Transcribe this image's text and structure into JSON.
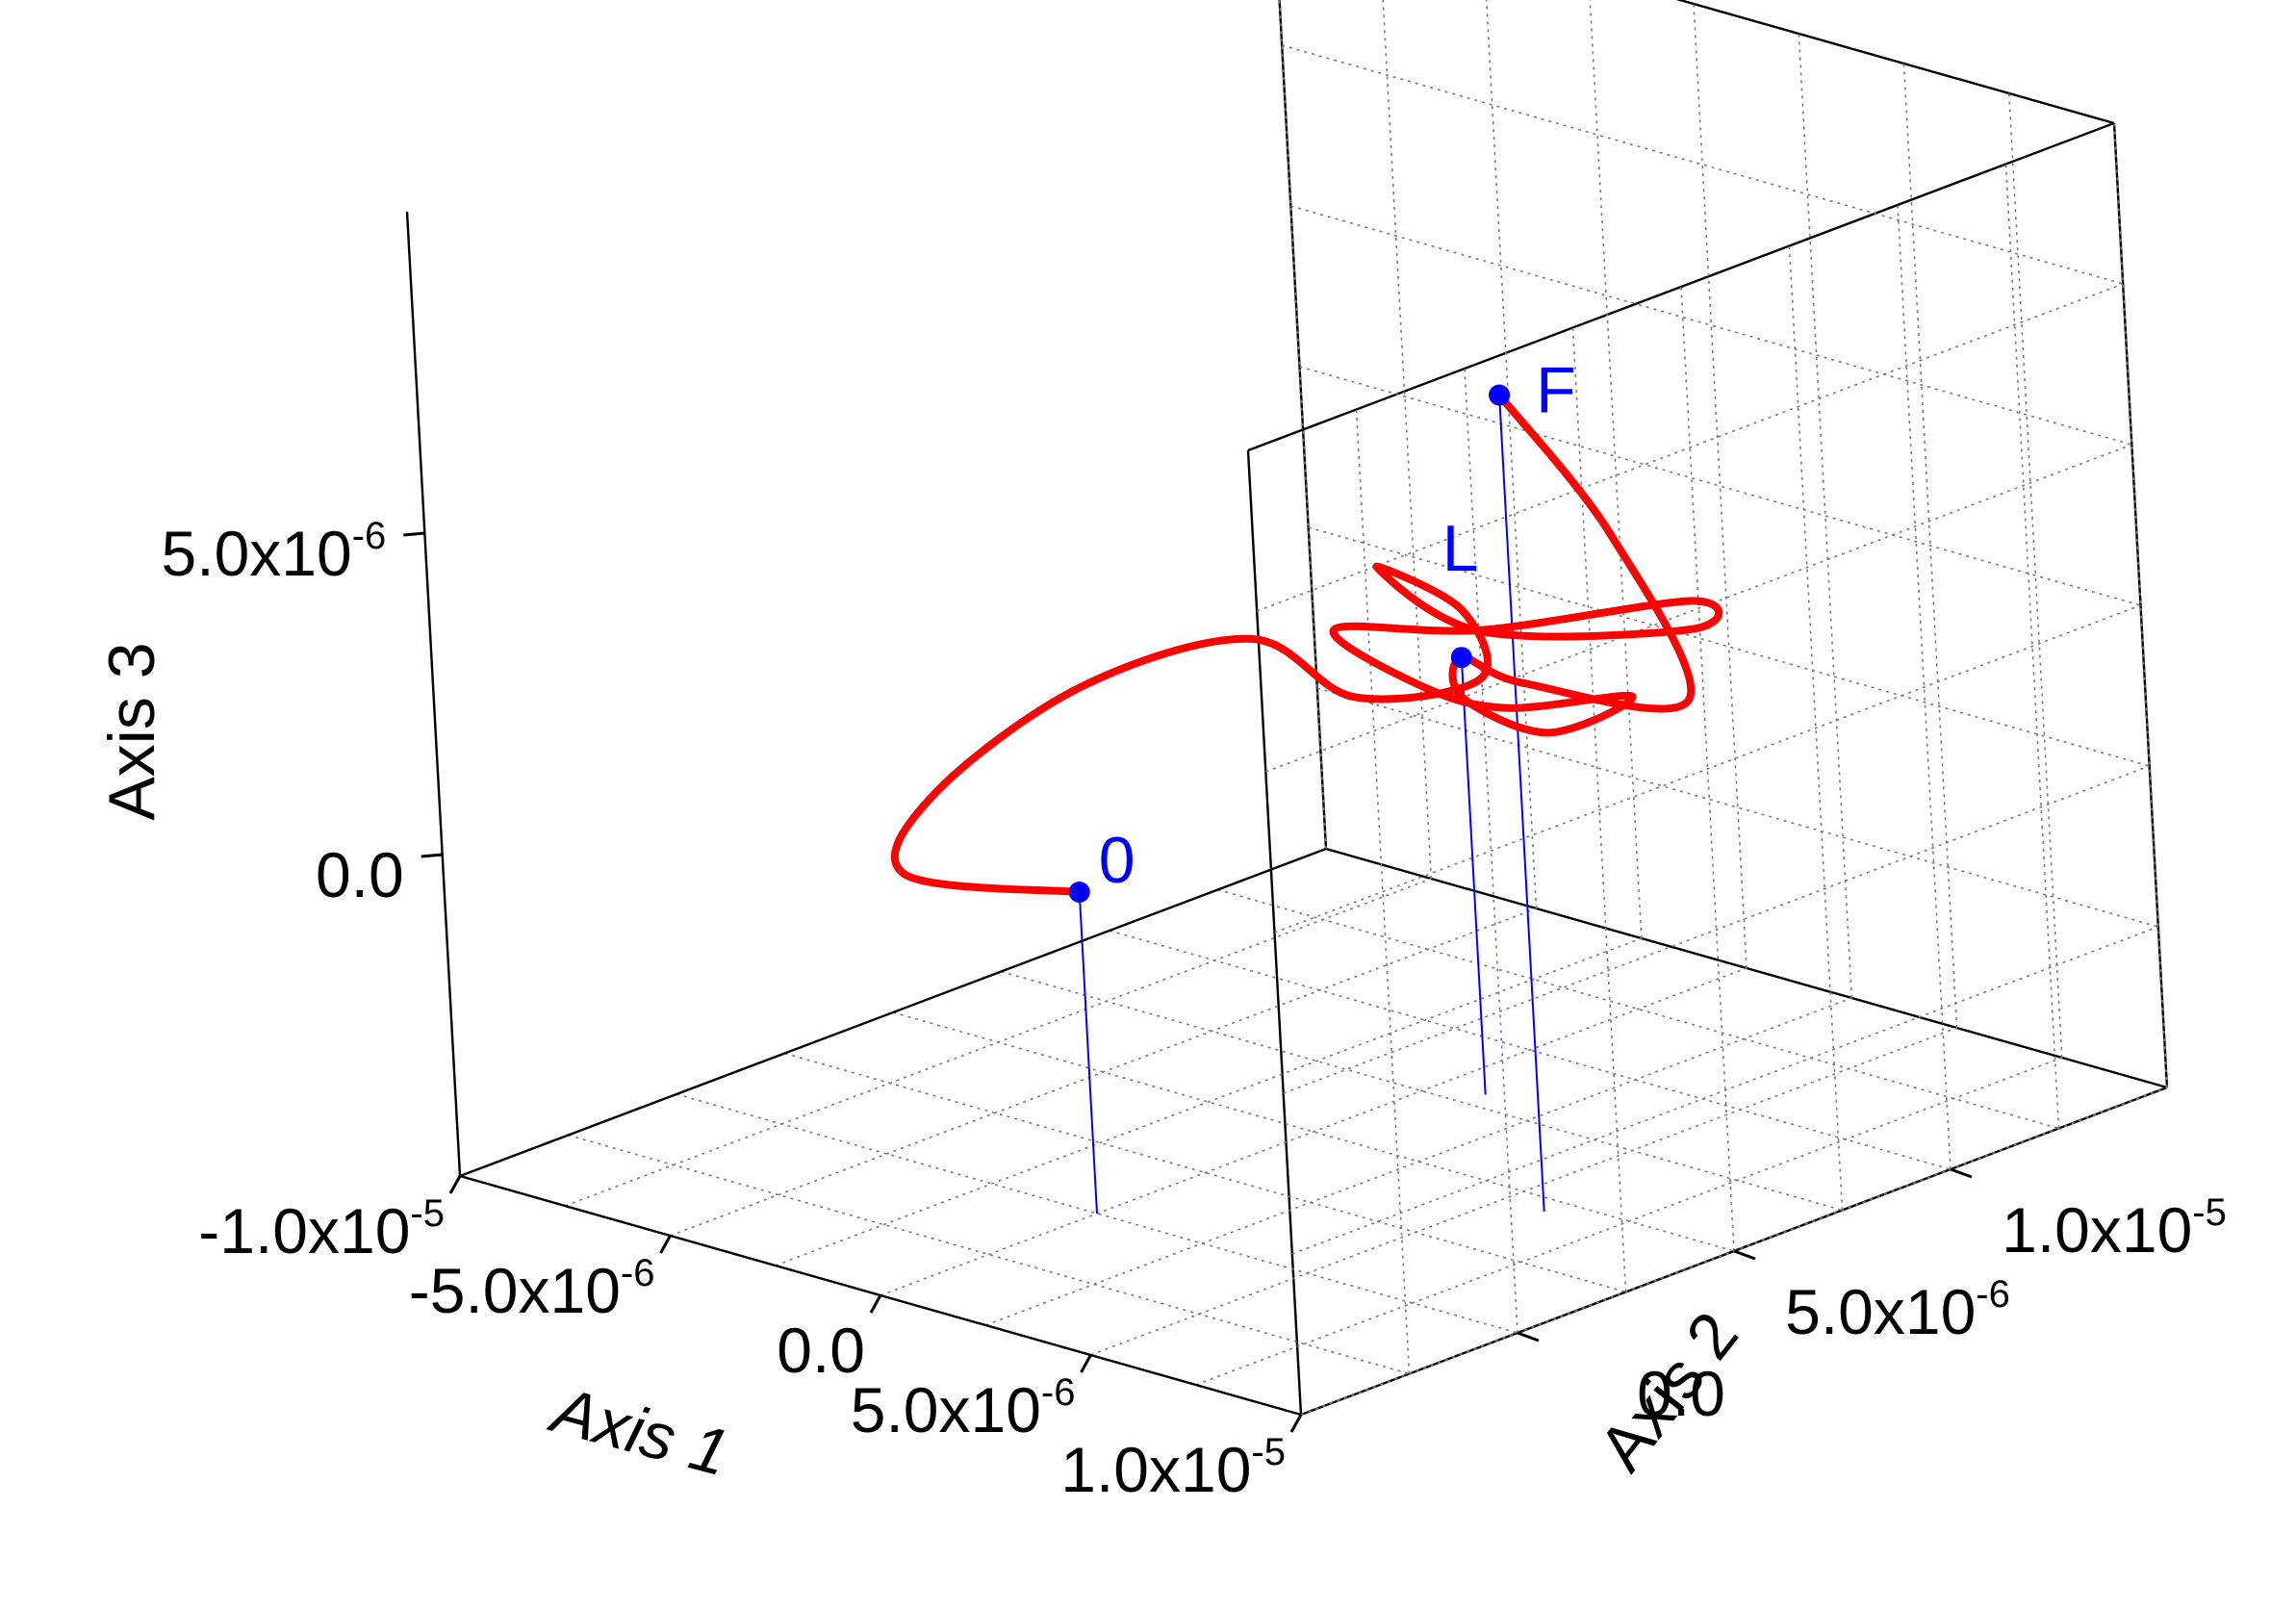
{
  "chart_data": {
    "type": "line3d",
    "title": "",
    "axes": {
      "x": {
        "label": "Axis 1",
        "range": [
          -1e-05,
          1e-05
        ],
        "ticks": [
          -1e-05,
          -5e-06,
          0.0,
          5e-06,
          1e-05
        ],
        "tick_labels": [
          {
            "base": "-1.0x10",
            "exp": "-5"
          },
          {
            "base": "-5.0x10",
            "exp": "-6"
          },
          {
            "base": "0.0",
            "exp": ""
          },
          {
            "base": "5.0x10",
            "exp": "-6"
          },
          {
            "base": "1.0x10",
            "exp": "-5"
          }
        ]
      },
      "y": {
        "label": "Axis 2",
        "range": [
          -5e-06,
          1.5e-05
        ],
        "ticks": [
          0.0,
          5e-06,
          1e-05
        ],
        "tick_labels": [
          {
            "base": "0.0",
            "exp": ""
          },
          {
            "base": "5.0x10",
            "exp": "-6"
          },
          {
            "base": "1.0x10",
            "exp": "-5"
          }
        ]
      },
      "z": {
        "label": "Axis 3",
        "range": [
          -5e-06,
          1e-05
        ],
        "ticks": [
          0.0,
          5e-06
        ],
        "tick_labels": [
          {
            "base": "0.0",
            "exp": ""
          },
          {
            "base": "5.0x10",
            "exp": "-6"
          }
        ]
      }
    },
    "grid": true,
    "colors": {
      "trajectory": "#ff0000",
      "markers": "#0000ff",
      "droplines": "#0000ff"
    },
    "points": [
      {
        "label": "0",
        "x": 0.0,
        "y": 0.0,
        "z": 0.0
      },
      {
        "label": "L",
        "x": 1e-06,
        "y": 8e-06,
        "z": 1.8e-06
      },
      {
        "label": "F",
        "x": 6e-06,
        "y": 4.5e-06,
        "z": 7.7e-06
      }
    ],
    "trajectory": [
      [
        0.0,
        0.0,
        0.0
      ],
      [
        -4.2e-06,
        0.0,
        -5e-07
      ],
      [
        -5.5e-06,
        2e-06,
        0.0
      ],
      [
        -5e-06,
        5e-06,
        1e-06
      ],
      [
        -3e-06,
        7e-06,
        1.6e-06
      ],
      [
        5e-07,
        6e-06,
        1.6e-06
      ],
      [
        2.5e-06,
        7e-06,
        2e-06
      ],
      [
        0.0,
        9e-06,
        2.1e-06
      ],
      [
        -2e-06,
        9e-06,
        2.4e-06
      ],
      [
        1.5e-06,
        8e-06,
        2.3e-06
      ],
      [
        5e-06,
        9.5e-06,
        2.6e-06
      ],
      [
        4e-06,
        1.05e-05,
        2.6e-06
      ],
      [
        1e-06,
        8.5e-06,
        2.1e-06
      ],
      [
        -1.5e-06,
        7.5e-06,
        1.9e-06
      ],
      [
        5e-07,
        7.5e-06,
        1.4e-06
      ],
      [
        2e-06,
        8e-06,
        1.2e-06
      ],
      [
        4e-06,
        9e-06,
        1.5e-06
      ],
      [
        3e-06,
        8e-06,
        1e-06
      ],
      [
        1.5e-06,
        7.5e-06,
        1.4e-06
      ],
      [
        1e-06,
        8e-06,
        1.8e-06
      ],
      [
        3e-06,
        7.5e-06,
        1.9e-06
      ],
      [
        7.5e-06,
        7e-06,
        2.6e-06
      ],
      [
        8.5e-06,
        4.5e-06,
        6e-06
      ],
      [
        6e-06,
        4.5e-06,
        7.7e-06
      ]
    ]
  }
}
